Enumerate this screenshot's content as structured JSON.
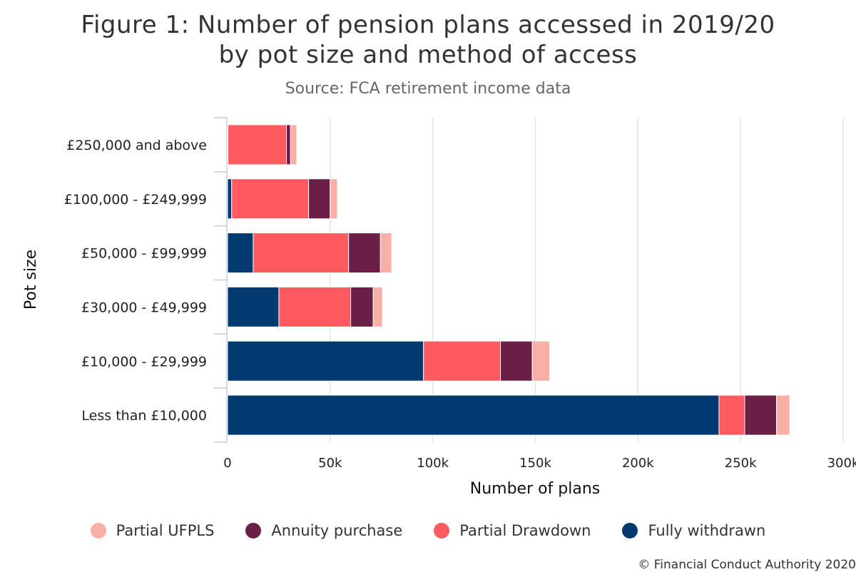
{
  "chart_data": {
    "type": "bar",
    "orientation": "horizontal",
    "stacked": true,
    "title_line1": "Figure 1: Number of pension plans accessed in 2019/20",
    "title_line2": "by pot size and method of access",
    "subtitle": "Source: FCA retirement income data",
    "xlabel": "Number of plans",
    "ylabel": "Pot size",
    "xlim": [
      0,
      300000
    ],
    "xticks": [
      0,
      50000,
      100000,
      150000,
      200000,
      250000,
      300000
    ],
    "xtick_labels": [
      "0",
      "50k",
      "100k",
      "150k",
      "200k",
      "250k",
      "300k"
    ],
    "grid": true,
    "legend_position": "bottom",
    "categories": [
      "£250,000 and above",
      "£100,000 - £249,999",
      "£50,000 - £99,999",
      "£30,000 - £49,999",
      "£10,000 - £29,999",
      "Less than £10,000"
    ],
    "series": [
      {
        "name": "Fully withdrawn",
        "color": "#003A70",
        "values": [
          200,
          2000,
          12500,
          25000,
          95500,
          239500
        ]
      },
      {
        "name": "Partial Drawdown",
        "color": "#FF5A5F",
        "values": [
          28500,
          37500,
          46500,
          35000,
          37500,
          12500
        ]
      },
      {
        "name": "Annuity purchase",
        "color": "#6B1F46",
        "values": [
          2000,
          10500,
          15500,
          11000,
          15500,
          15500
        ]
      },
      {
        "name": "Partial UFPLS",
        "color": "#F9AFA6",
        "values": [
          3000,
          3500,
          5500,
          4500,
          8500,
          6500
        ]
      }
    ],
    "legend_order": [
      "Partial UFPLS",
      "Annuity purchase",
      "Partial Drawdown",
      "Fully withdrawn"
    ]
  },
  "legend": {
    "items": [
      {
        "label": "Partial UFPLS",
        "color": "#F9AFA6"
      },
      {
        "label": "Annuity purchase",
        "color": "#6B1F46"
      },
      {
        "label": "Partial Drawdown",
        "color": "#FF5A5F"
      },
      {
        "label": "Fully withdrawn",
        "color": "#003A70"
      }
    ]
  },
  "credit": "© Financial Conduct Authority 2020"
}
